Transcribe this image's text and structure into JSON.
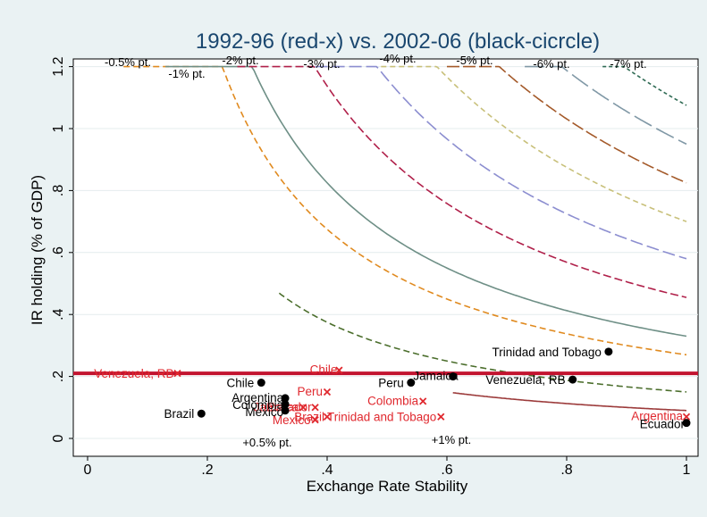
{
  "chart_data": {
    "type": "scatter",
    "title": "1992-96 (red-x) vs. 2002-06 (black-cicrcle)",
    "xlabel": "Exchange Rate Stability",
    "ylabel": "IR holding (% of GDP)",
    "xlim": [
      0,
      1
    ],
    "ylim": [
      0,
      1.2
    ],
    "x_ticks": [
      0,
      0.2,
      0.4,
      0.6,
      0.8,
      1
    ],
    "x_tick_labels": [
      "0",
      ".2",
      ".4",
      ".6",
      ".8",
      "1"
    ],
    "y_ticks": [
      0,
      0.2,
      0.4,
      0.6,
      0.8,
      1.0,
      1.2
    ],
    "y_tick_labels": [
      "0",
      ".2",
      ".4",
      ".6",
      ".8",
      "1",
      "1.2"
    ],
    "grid": "horizontal",
    "colors": {
      "background": "#eaf2f3",
      "plot_bg": "#ffffff",
      "red": "#e0282e",
      "black": "#000000",
      "threshold_line": "#c2132f"
    },
    "threshold_y": 0.21,
    "series": [
      {
        "marker": "x",
        "color": "#e0282e",
        "points": [
          {
            "label": "Venezuela, RB",
            "x": 0.15,
            "y": 0.21
          },
          {
            "label": "Chile",
            "x": 0.42,
            "y": 0.22
          },
          {
            "label": "Peru",
            "x": 0.4,
            "y": 0.15
          },
          {
            "label": "Colombia",
            "x": 0.56,
            "y": 0.12
          },
          {
            "label": "Jamaica",
            "x": 0.36,
            "y": 0.1
          },
          {
            "label": "Ecuador",
            "x": 0.38,
            "y": 0.1
          },
          {
            "label": "Mexico",
            "x": 0.38,
            "y": 0.06
          },
          {
            "label": "Brazil",
            "x": 0.4,
            "y": 0.07
          },
          {
            "label": "Trinidad and Tobago",
            "x": 0.59,
            "y": 0.07
          },
          {
            "label": "Argentina",
            "x": 1.0,
            "y": 0.07
          }
        ]
      },
      {
        "marker": "circle",
        "color": "#000000",
        "points": [
          {
            "label": "Brazil",
            "x": 0.19,
            "y": 0.08
          },
          {
            "label": "Chile",
            "x": 0.29,
            "y": 0.18
          },
          {
            "label": "Argentina",
            "x": 0.33,
            "y": 0.13
          },
          {
            "label": "Colombia",
            "x": 0.33,
            "y": 0.11
          },
          {
            "label": "Mexico",
            "x": 0.33,
            "y": 0.09
          },
          {
            "label": "Peru",
            "x": 0.54,
            "y": 0.18
          },
          {
            "label": "Jamaica",
            "x": 0.61,
            "y": 0.2
          },
          {
            "label": "Venezuela, RB",
            "x": 0.81,
            "y": 0.19
          },
          {
            "label": "Trinidad and Tobago",
            "x": 0.87,
            "y": 0.28
          },
          {
            "label": "Ecuador",
            "x": 1.0,
            "y": 0.05
          }
        ]
      }
    ],
    "iso_curves": [
      {
        "label": "+1% pt.",
        "color": "#9c3b3b",
        "dash": "",
        "k": 0.09,
        "x0": 0.61
      },
      {
        "label": "+0.5% pt.",
        "color": "#4b6e2c",
        "dash": "7 4",
        "k": 0.15,
        "x0": 0.32
      },
      {
        "label": "-0.5% pt.",
        "color": "#e08a1f",
        "dash": "7 4",
        "k": 0.27,
        "x0": 0.06
      },
      {
        "label": "-1% pt.",
        "color": "#6e8f86",
        "dash": "",
        "k": 0.33,
        "x0": 0.13
      },
      {
        "label": "-2% pt.",
        "color": "#b0204a",
        "dash": "9 4",
        "k": 0.455,
        "x0": 0.25
      },
      {
        "label": "-3% pt.",
        "color": "#8c8ed0",
        "dash": "14 5",
        "k": 0.58,
        "x0": 0.38
      },
      {
        "label": "-4% pt.",
        "color": "#c8c07a",
        "dash": "6 4",
        "k": 0.7,
        "x0": 0.49
      },
      {
        "label": "-5% pt.",
        "color": "#a45a2a",
        "dash": "14 4",
        "k": 0.825,
        "x0": 0.6
      },
      {
        "label": "-6% pt.",
        "color": "#8098a6",
        "dash": "22 6",
        "k": 0.95,
        "x0": 0.73
      },
      {
        "label": "-7% pt.",
        "color": "#2e6a53",
        "dash": "4 3",
        "k": 1.075,
        "x0": 0.86
      }
    ]
  }
}
